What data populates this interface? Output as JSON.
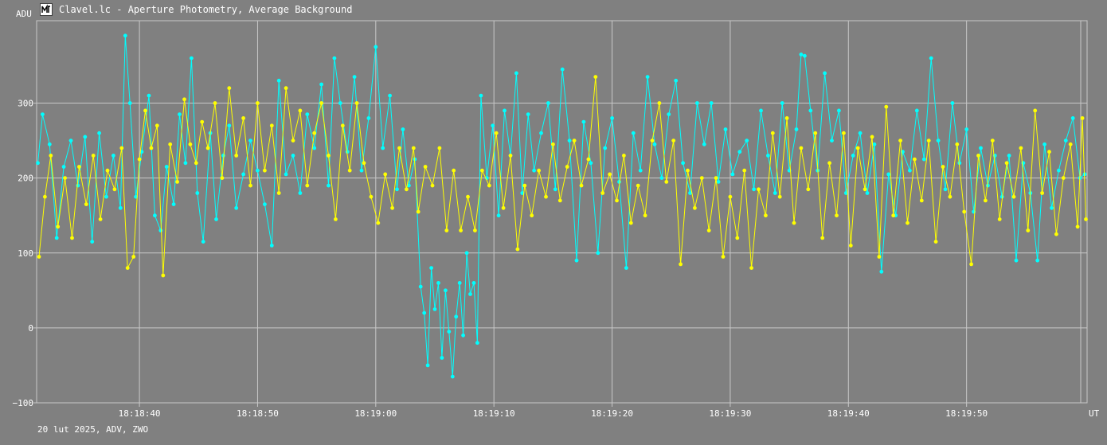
{
  "window": {
    "title": "Clavel.lc - Aperture Photometry, Average Background",
    "footer": "20 lut 2025, ADV, ZWO"
  },
  "colors": {
    "background": "#808080",
    "grid": "#c8c8c8",
    "text": "#ffffff",
    "series_cyan": "#00ffff",
    "series_yellow": "#ffff00"
  },
  "chart_data": {
    "type": "line",
    "ylabel": "ADU",
    "xlabel": "UT",
    "ylim": [
      -100,
      410
    ],
    "yticks": [
      {
        "value": -100,
        "label": "−100"
      },
      {
        "value": 0,
        "label": "0"
      },
      {
        "value": 100,
        "label": "100"
      },
      {
        "value": 200,
        "label": "200"
      },
      {
        "value": 300,
        "label": "300"
      }
    ],
    "x_range_seconds": [
      -8.7,
      80.2
    ],
    "xticks": [
      {
        "value": 0,
        "label": "18:18:40"
      },
      {
        "value": 10,
        "label": "18:18:50"
      },
      {
        "value": 20,
        "label": "18:19:00"
      },
      {
        "value": 30,
        "label": "18:19:10"
      },
      {
        "value": 40,
        "label": "18:19:20"
      },
      {
        "value": 50,
        "label": "18:19:30"
      },
      {
        "value": 60,
        "label": "18:19:40"
      },
      {
        "value": 70,
        "label": "18:19:50"
      }
    ],
    "grid": true,
    "series_cyan": [
      {
        "x": -8.6,
        "y": 220
      },
      {
        "x": -8.2,
        "y": 285
      },
      {
        "x": -7.6,
        "y": 245
      },
      {
        "x": -7.0,
        "y": 120
      },
      {
        "x": -6.4,
        "y": 215
      },
      {
        "x": -5.8,
        "y": 250
      },
      {
        "x": -5.2,
        "y": 190
      },
      {
        "x": -4.6,
        "y": 255
      },
      {
        "x": -4.0,
        "y": 115
      },
      {
        "x": -3.4,
        "y": 260
      },
      {
        "x": -2.8,
        "y": 175
      },
      {
        "x": -2.2,
        "y": 230
      },
      {
        "x": -1.6,
        "y": 160
      },
      {
        "x": -1.2,
        "y": 390
      },
      {
        "x": -0.8,
        "y": 300
      },
      {
        "x": -0.3,
        "y": 175
      },
      {
        "x": 0.2,
        "y": 235
      },
      {
        "x": 0.8,
        "y": 310
      },
      {
        "x": 1.3,
        "y": 150
      },
      {
        "x": 1.8,
        "y": 130
      },
      {
        "x": 2.3,
        "y": 215
      },
      {
        "x": 2.9,
        "y": 165
      },
      {
        "x": 3.4,
        "y": 285
      },
      {
        "x": 3.9,
        "y": 220
      },
      {
        "x": 4.4,
        "y": 360
      },
      {
        "x": 4.9,
        "y": 180
      },
      {
        "x": 5.4,
        "y": 115
      },
      {
        "x": 6.0,
        "y": 260
      },
      {
        "x": 6.5,
        "y": 145
      },
      {
        "x": 7.1,
        "y": 230
      },
      {
        "x": 7.6,
        "y": 270
      },
      {
        "x": 8.2,
        "y": 160
      },
      {
        "x": 8.8,
        "y": 205
      },
      {
        "x": 9.4,
        "y": 250
      },
      {
        "x": 10.0,
        "y": 210
      },
      {
        "x": 10.6,
        "y": 165
      },
      {
        "x": 11.2,
        "y": 110
      },
      {
        "x": 11.8,
        "y": 330
      },
      {
        "x": 12.4,
        "y": 205
      },
      {
        "x": 13.0,
        "y": 230
      },
      {
        "x": 13.6,
        "y": 180
      },
      {
        "x": 14.2,
        "y": 285
      },
      {
        "x": 14.8,
        "y": 240
      },
      {
        "x": 15.4,
        "y": 325
      },
      {
        "x": 16.0,
        "y": 190
      },
      {
        "x": 16.5,
        "y": 360
      },
      {
        "x": 17.0,
        "y": 300
      },
      {
        "x": 17.6,
        "y": 235
      },
      {
        "x": 18.2,
        "y": 335
      },
      {
        "x": 18.8,
        "y": 210
      },
      {
        "x": 19.4,
        "y": 280
      },
      {
        "x": 20.0,
        "y": 375
      },
      {
        "x": 20.6,
        "y": 240
      },
      {
        "x": 21.2,
        "y": 310
      },
      {
        "x": 21.8,
        "y": 185
      },
      {
        "x": 22.3,
        "y": 265
      },
      {
        "x": 22.8,
        "y": 190
      },
      {
        "x": 23.3,
        "y": 225
      },
      {
        "x": 23.8,
        "y": 55
      },
      {
        "x": 24.1,
        "y": 20
      },
      {
        "x": 24.4,
        "y": -50
      },
      {
        "x": 24.7,
        "y": 80
      },
      {
        "x": 25.0,
        "y": 25
      },
      {
        "x": 25.3,
        "y": 60
      },
      {
        "x": 25.6,
        "y": -40
      },
      {
        "x": 25.9,
        "y": 50
      },
      {
        "x": 26.2,
        "y": -5
      },
      {
        "x": 26.5,
        "y": -65
      },
      {
        "x": 26.8,
        "y": 15
      },
      {
        "x": 27.1,
        "y": 60
      },
      {
        "x": 27.4,
        "y": -10
      },
      {
        "x": 27.7,
        "y": 100
      },
      {
        "x": 28.0,
        "y": 45
      },
      {
        "x": 28.3,
        "y": 60
      },
      {
        "x": 28.6,
        "y": -20
      },
      {
        "x": 28.9,
        "y": 310
      },
      {
        "x": 29.4,
        "y": 200
      },
      {
        "x": 29.9,
        "y": 270
      },
      {
        "x": 30.4,
        "y": 150
      },
      {
        "x": 30.9,
        "y": 290
      },
      {
        "x": 31.4,
        "y": 230
      },
      {
        "x": 31.9,
        "y": 340
      },
      {
        "x": 32.4,
        "y": 180
      },
      {
        "x": 32.9,
        "y": 285
      },
      {
        "x": 33.4,
        "y": 210
      },
      {
        "x": 34.0,
        "y": 260
      },
      {
        "x": 34.6,
        "y": 300
      },
      {
        "x": 35.2,
        "y": 185
      },
      {
        "x": 35.8,
        "y": 345
      },
      {
        "x": 36.4,
        "y": 250
      },
      {
        "x": 37.0,
        "y": 90
      },
      {
        "x": 37.6,
        "y": 275
      },
      {
        "x": 38.2,
        "y": 220
      },
      {
        "x": 38.8,
        "y": 100
      },
      {
        "x": 39.4,
        "y": 240
      },
      {
        "x": 40.0,
        "y": 280
      },
      {
        "x": 40.6,
        "y": 195
      },
      {
        "x": 41.2,
        "y": 80
      },
      {
        "x": 41.8,
        "y": 260
      },
      {
        "x": 42.4,
        "y": 210
      },
      {
        "x": 43.0,
        "y": 335
      },
      {
        "x": 43.6,
        "y": 245
      },
      {
        "x": 44.2,
        "y": 200
      },
      {
        "x": 44.8,
        "y": 285
      },
      {
        "x": 45.4,
        "y": 330
      },
      {
        "x": 46.0,
        "y": 220
      },
      {
        "x": 46.6,
        "y": 180
      },
      {
        "x": 47.2,
        "y": 300
      },
      {
        "x": 47.8,
        "y": 245
      },
      {
        "x": 48.4,
        "y": 300
      },
      {
        "x": 49.0,
        "y": 195
      },
      {
        "x": 49.6,
        "y": 265
      },
      {
        "x": 50.2,
        "y": 205
      },
      {
        "x": 50.8,
        "y": 235
      },
      {
        "x": 51.4,
        "y": 250
      },
      {
        "x": 52.0,
        "y": 185
      },
      {
        "x": 52.6,
        "y": 290
      },
      {
        "x": 53.2,
        "y": 230
      },
      {
        "x": 53.8,
        "y": 180
      },
      {
        "x": 54.4,
        "y": 300
      },
      {
        "x": 55.0,
        "y": 210
      },
      {
        "x": 55.6,
        "y": 265
      },
      {
        "x": 56.0,
        "y": 365
      },
      {
        "x": 56.3,
        "y": 363
      },
      {
        "x": 56.8,
        "y": 290
      },
      {
        "x": 57.4,
        "y": 210
      },
      {
        "x": 58.0,
        "y": 340
      },
      {
        "x": 58.6,
        "y": 250
      },
      {
        "x": 59.2,
        "y": 290
      },
      {
        "x": 59.8,
        "y": 180
      },
      {
        "x": 60.4,
        "y": 230
      },
      {
        "x": 61.0,
        "y": 260
      },
      {
        "x": 61.6,
        "y": 180
      },
      {
        "x": 62.2,
        "y": 245
      },
      {
        "x": 62.8,
        "y": 75
      },
      {
        "x": 63.4,
        "y": 205
      },
      {
        "x": 64.0,
        "y": 150
      },
      {
        "x": 64.6,
        "y": 235
      },
      {
        "x": 65.2,
        "y": 210
      },
      {
        "x": 65.8,
        "y": 290
      },
      {
        "x": 66.4,
        "y": 225
      },
      {
        "x": 67.0,
        "y": 360
      },
      {
        "x": 67.6,
        "y": 250
      },
      {
        "x": 68.2,
        "y": 185
      },
      {
        "x": 68.8,
        "y": 300
      },
      {
        "x": 69.4,
        "y": 220
      },
      {
        "x": 70.0,
        "y": 265
      },
      {
        "x": 70.6,
        "y": 155
      },
      {
        "x": 71.2,
        "y": 240
      },
      {
        "x": 71.8,
        "y": 190
      },
      {
        "x": 72.4,
        "y": 230
      },
      {
        "x": 73.0,
        "y": 175
      },
      {
        "x": 73.6,
        "y": 230
      },
      {
        "x": 74.2,
        "y": 90
      },
      {
        "x": 74.8,
        "y": 220
      },
      {
        "x": 75.4,
        "y": 180
      },
      {
        "x": 76.0,
        "y": 90
      },
      {
        "x": 76.6,
        "y": 245
      },
      {
        "x": 77.2,
        "y": 160
      },
      {
        "x": 77.8,
        "y": 210
      },
      {
        "x": 78.4,
        "y": 250
      },
      {
        "x": 79.0,
        "y": 280
      },
      {
        "x": 79.6,
        "y": 200
      },
      {
        "x": 80.0,
        "y": 205
      }
    ],
    "series_yellow": [
      {
        "x": -8.5,
        "y": 95
      },
      {
        "x": -8.0,
        "y": 175
      },
      {
        "x": -7.5,
        "y": 230
      },
      {
        "x": -6.9,
        "y": 135
      },
      {
        "x": -6.3,
        "y": 200
      },
      {
        "x": -5.7,
        "y": 120
      },
      {
        "x": -5.1,
        "y": 215
      },
      {
        "x": -4.5,
        "y": 165
      },
      {
        "x": -3.9,
        "y": 230
      },
      {
        "x": -3.3,
        "y": 145
      },
      {
        "x": -2.7,
        "y": 210
      },
      {
        "x": -2.1,
        "y": 185
      },
      {
        "x": -1.5,
        "y": 240
      },
      {
        "x": -1.0,
        "y": 80
      },
      {
        "x": -0.5,
        "y": 95
      },
      {
        "x": 0.0,
        "y": 225
      },
      {
        "x": 0.5,
        "y": 290
      },
      {
        "x": 1.0,
        "y": 240
      },
      {
        "x": 1.5,
        "y": 270
      },
      {
        "x": 2.0,
        "y": 70
      },
      {
        "x": 2.6,
        "y": 245
      },
      {
        "x": 3.2,
        "y": 195
      },
      {
        "x": 3.8,
        "y": 305
      },
      {
        "x": 4.3,
        "y": 245
      },
      {
        "x": 4.8,
        "y": 220
      },
      {
        "x": 5.3,
        "y": 275
      },
      {
        "x": 5.8,
        "y": 240
      },
      {
        "x": 6.4,
        "y": 300
      },
      {
        "x": 7.0,
        "y": 200
      },
      {
        "x": 7.6,
        "y": 320
      },
      {
        "x": 8.2,
        "y": 230
      },
      {
        "x": 8.8,
        "y": 280
      },
      {
        "x": 9.4,
        "y": 190
      },
      {
        "x": 10.0,
        "y": 300
      },
      {
        "x": 10.6,
        "y": 210
      },
      {
        "x": 11.2,
        "y": 270
      },
      {
        "x": 11.8,
        "y": 180
      },
      {
        "x": 12.4,
        "y": 320
      },
      {
        "x": 13.0,
        "y": 250
      },
      {
        "x": 13.6,
        "y": 290
      },
      {
        "x": 14.2,
        "y": 190
      },
      {
        "x": 14.8,
        "y": 260
      },
      {
        "x": 15.4,
        "y": 300
      },
      {
        "x": 16.0,
        "y": 230
      },
      {
        "x": 16.6,
        "y": 145
      },
      {
        "x": 17.2,
        "y": 270
      },
      {
        "x": 17.8,
        "y": 210
      },
      {
        "x": 18.4,
        "y": 300
      },
      {
        "x": 19.0,
        "y": 220
      },
      {
        "x": 19.6,
        "y": 175
      },
      {
        "x": 20.2,
        "y": 140
      },
      {
        "x": 20.8,
        "y": 205
      },
      {
        "x": 21.4,
        "y": 160
      },
      {
        "x": 22.0,
        "y": 240
      },
      {
        "x": 22.6,
        "y": 185
      },
      {
        "x": 23.2,
        "y": 240
      },
      {
        "x": 23.6,
        "y": 155
      },
      {
        "x": 24.2,
        "y": 215
      },
      {
        "x": 24.8,
        "y": 190
      },
      {
        "x": 25.4,
        "y": 240
      },
      {
        "x": 26.0,
        "y": 130
      },
      {
        "x": 26.6,
        "y": 210
      },
      {
        "x": 27.2,
        "y": 130
      },
      {
        "x": 27.8,
        "y": 175
      },
      {
        "x": 28.4,
        "y": 130
      },
      {
        "x": 29.0,
        "y": 210
      },
      {
        "x": 29.6,
        "y": 190
      },
      {
        "x": 30.2,
        "y": 260
      },
      {
        "x": 30.8,
        "y": 160
      },
      {
        "x": 31.4,
        "y": 230
      },
      {
        "x": 32.0,
        "y": 105
      },
      {
        "x": 32.6,
        "y": 190
      },
      {
        "x": 33.2,
        "y": 150
      },
      {
        "x": 33.8,
        "y": 210
      },
      {
        "x": 34.4,
        "y": 175
      },
      {
        "x": 35.0,
        "y": 245
      },
      {
        "x": 35.6,
        "y": 170
      },
      {
        "x": 36.2,
        "y": 215
      },
      {
        "x": 36.8,
        "y": 250
      },
      {
        "x": 37.4,
        "y": 190
      },
      {
        "x": 38.0,
        "y": 225
      },
      {
        "x": 38.6,
        "y": 335
      },
      {
        "x": 39.2,
        "y": 180
      },
      {
        "x": 39.8,
        "y": 205
      },
      {
        "x": 40.4,
        "y": 170
      },
      {
        "x": 41.0,
        "y": 230
      },
      {
        "x": 41.6,
        "y": 140
      },
      {
        "x": 42.2,
        "y": 190
      },
      {
        "x": 42.8,
        "y": 150
      },
      {
        "x": 43.4,
        "y": 250
      },
      {
        "x": 44.0,
        "y": 300
      },
      {
        "x": 44.6,
        "y": 195
      },
      {
        "x": 45.2,
        "y": 250
      },
      {
        "x": 45.8,
        "y": 85
      },
      {
        "x": 46.4,
        "y": 210
      },
      {
        "x": 47.0,
        "y": 160
      },
      {
        "x": 47.6,
        "y": 200
      },
      {
        "x": 48.2,
        "y": 130
      },
      {
        "x": 48.8,
        "y": 200
      },
      {
        "x": 49.4,
        "y": 95
      },
      {
        "x": 50.0,
        "y": 175
      },
      {
        "x": 50.6,
        "y": 120
      },
      {
        "x": 51.2,
        "y": 210
      },
      {
        "x": 51.8,
        "y": 80
      },
      {
        "x": 52.4,
        "y": 185
      },
      {
        "x": 53.0,
        "y": 150
      },
      {
        "x": 53.6,
        "y": 260
      },
      {
        "x": 54.2,
        "y": 175
      },
      {
        "x": 54.8,
        "y": 280
      },
      {
        "x": 55.4,
        "y": 140
      },
      {
        "x": 56.0,
        "y": 240
      },
      {
        "x": 56.6,
        "y": 185
      },
      {
        "x": 57.2,
        "y": 260
      },
      {
        "x": 57.8,
        "y": 120
      },
      {
        "x": 58.4,
        "y": 220
      },
      {
        "x": 59.0,
        "y": 150
      },
      {
        "x": 59.6,
        "y": 260
      },
      {
        "x": 60.2,
        "y": 110
      },
      {
        "x": 60.8,
        "y": 240
      },
      {
        "x": 61.4,
        "y": 185
      },
      {
        "x": 62.0,
        "y": 255
      },
      {
        "x": 62.6,
        "y": 95
      },
      {
        "x": 63.2,
        "y": 295
      },
      {
        "x": 63.8,
        "y": 150
      },
      {
        "x": 64.4,
        "y": 250
      },
      {
        "x": 65.0,
        "y": 140
      },
      {
        "x": 65.6,
        "y": 225
      },
      {
        "x": 66.2,
        "y": 170
      },
      {
        "x": 66.8,
        "y": 250
      },
      {
        "x": 67.4,
        "y": 115
      },
      {
        "x": 68.0,
        "y": 215
      },
      {
        "x": 68.6,
        "y": 175
      },
      {
        "x": 69.2,
        "y": 245
      },
      {
        "x": 69.8,
        "y": 155
      },
      {
        "x": 70.4,
        "y": 85
      },
      {
        "x": 71.0,
        "y": 230
      },
      {
        "x": 71.6,
        "y": 170
      },
      {
        "x": 72.2,
        "y": 250
      },
      {
        "x": 72.8,
        "y": 145
      },
      {
        "x": 73.4,
        "y": 220
      },
      {
        "x": 74.0,
        "y": 175
      },
      {
        "x": 74.6,
        "y": 240
      },
      {
        "x": 75.2,
        "y": 130
      },
      {
        "x": 75.8,
        "y": 290
      },
      {
        "x": 76.4,
        "y": 180
      },
      {
        "x": 77.0,
        "y": 235
      },
      {
        "x": 77.6,
        "y": 125
      },
      {
        "x": 78.2,
        "y": 200
      },
      {
        "x": 78.8,
        "y": 245
      },
      {
        "x": 79.4,
        "y": 135
      },
      {
        "x": 79.8,
        "y": 280
      },
      {
        "x": 80.1,
        "y": 145
      }
    ]
  }
}
